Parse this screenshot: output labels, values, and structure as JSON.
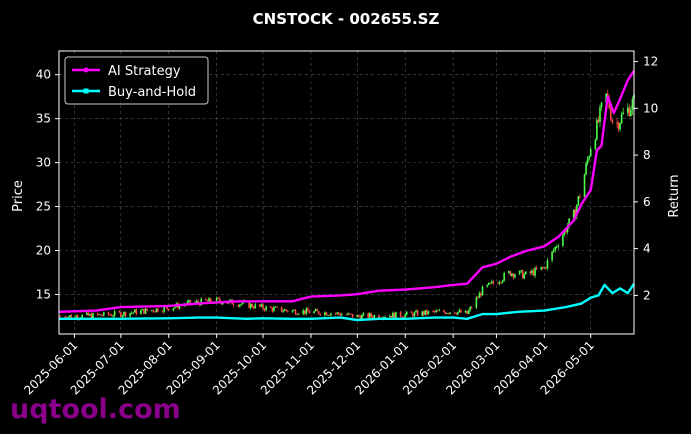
{
  "chart_data": {
    "type": "line",
    "title": "CNSTOCK - 002655.SZ",
    "xlabel": "",
    "ylabel_left": "Price",
    "ylabel_right": "Return",
    "ylim_left": [
      10.5,
      42.7
    ],
    "ylim_right": [
      0.35,
      12.45
    ],
    "yticks_left": [
      15,
      20,
      25,
      30,
      35,
      40
    ],
    "yticks_right": [
      2,
      4,
      6,
      8,
      10,
      12
    ],
    "x_range": [
      "2025-05-22",
      "2026-05-29"
    ],
    "x_tick_labels": [
      "2025-06-01",
      "2025-07-01",
      "2025-08-01",
      "2025-09-01",
      "2025-10-01",
      "2025-11-01",
      "2025-12-01",
      "2026-01-01",
      "2026-02-01",
      "2026-03-01",
      "2026-04-01",
      "2026-05-01"
    ],
    "grid": true,
    "legend_position": "top-left",
    "colors": {
      "background": "#000000",
      "up": "#4cff4c",
      "down": "#ff4c4c",
      "ai": "#ff00ff",
      "bh": "#00ffff",
      "grid": "#555555",
      "watermark": "#8b008b"
    },
    "series": [
      {
        "name": "AI Strategy",
        "axis": "right",
        "x": [
          "2025-05-22",
          "2025-06-15",
          "2025-07-01",
          "2025-08-01",
          "2025-08-20",
          "2025-09-01",
          "2025-09-15",
          "2025-10-01",
          "2025-10-20",
          "2025-11-01",
          "2025-11-20",
          "2025-12-01",
          "2025-12-15",
          "2026-01-01",
          "2026-01-20",
          "2026-02-01",
          "2026-02-10",
          "2026-02-20",
          "2026-03-01",
          "2026-03-10",
          "2026-03-20",
          "2026-04-01",
          "2026-04-10",
          "2026-04-20",
          "2026-04-25",
          "2026-05-01",
          "2026-05-05",
          "2026-05-08",
          "2026-05-12",
          "2026-05-16",
          "2026-05-20",
          "2026-05-25",
          "2026-05-29"
        ],
        "values": [
          1.3,
          1.35,
          1.5,
          1.55,
          1.65,
          1.7,
          1.75,
          1.75,
          1.75,
          1.95,
          2.0,
          2.05,
          2.2,
          2.25,
          2.35,
          2.45,
          2.5,
          3.2,
          3.35,
          3.65,
          3.9,
          4.1,
          4.5,
          5.2,
          5.9,
          6.5,
          8.2,
          8.4,
          10.5,
          9.8,
          10.4,
          11.2,
          11.6
        ]
      },
      {
        "name": "Buy-and-Hold",
        "axis": "right",
        "x": [
          "2025-05-22",
          "2025-06-15",
          "2025-07-01",
          "2025-08-01",
          "2025-08-20",
          "2025-09-01",
          "2025-09-20",
          "2025-10-01",
          "2025-10-20",
          "2025-11-01",
          "2025-11-20",
          "2025-12-01",
          "2025-12-15",
          "2026-01-01",
          "2026-01-20",
          "2026-02-01",
          "2026-02-10",
          "2026-02-20",
          "2026-03-01",
          "2026-03-15",
          "2026-04-01",
          "2026-04-15",
          "2026-04-25",
          "2026-05-01",
          "2026-05-06",
          "2026-05-10",
          "2026-05-15",
          "2026-05-20",
          "2026-05-25",
          "2026-05-29"
        ],
        "values": [
          1.0,
          1.0,
          1.0,
          1.02,
          1.05,
          1.05,
          1.0,
          1.02,
          1.0,
          1.0,
          1.05,
          0.95,
          1.0,
          1.0,
          1.05,
          1.05,
          1.0,
          1.2,
          1.2,
          1.3,
          1.35,
          1.5,
          1.65,
          1.9,
          2.0,
          2.45,
          2.1,
          2.3,
          2.1,
          2.5
        ]
      },
      {
        "name": "Price",
        "axis": "left",
        "x": [
          "2025-05-22",
          "2025-06-15",
          "2025-07-01",
          "2025-07-20",
          "2025-08-01",
          "2025-08-15",
          "2025-09-01",
          "2025-09-15",
          "2025-10-01",
          "2025-10-15",
          "2025-11-01",
          "2025-11-15",
          "2025-12-01",
          "2025-12-15",
          "2026-01-01",
          "2026-01-15",
          "2026-02-01",
          "2026-02-10",
          "2026-02-20",
          "2026-03-01",
          "2026-03-10",
          "2026-03-20",
          "2026-04-01",
          "2026-04-10",
          "2026-04-20",
          "2026-04-25",
          "2026-05-01",
          "2026-05-05",
          "2026-05-08",
          "2026-05-10",
          "2026-05-13",
          "2026-05-16",
          "2026-05-20",
          "2026-05-25",
          "2026-05-29"
        ],
        "values": [
          12.5,
          12.6,
          12.8,
          13.2,
          13.5,
          14.0,
          14.3,
          14.0,
          13.5,
          13.2,
          13.0,
          12.9,
          12.5,
          12.6,
          12.7,
          12.9,
          13.1,
          12.8,
          15.5,
          16.5,
          17.5,
          17.2,
          18.0,
          21.0,
          24.0,
          27.0,
          32.0,
          34.0,
          36.0,
          38.0,
          36.5,
          34.0,
          35.0,
          36.0,
          37.0
        ]
      }
    ]
  },
  "legend": {
    "ai_label": "AI Strategy",
    "bh_label": "Buy-and-Hold"
  },
  "watermark": "uqtool.com"
}
